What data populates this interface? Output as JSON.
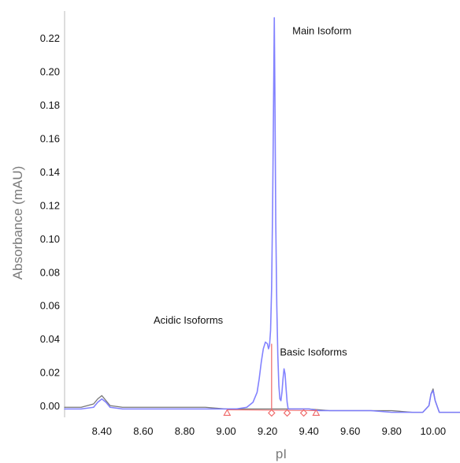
{
  "chart_data": {
    "type": "line",
    "title": "",
    "xlabel": "pI",
    "ylabel": "Absorbance (mAU)",
    "xlim": [
      8.22,
      10.13
    ],
    "ylim": [
      -0.007,
      0.236
    ],
    "grid": false,
    "legend": "none",
    "x_ticks": [
      8.4,
      8.6,
      8.8,
      9.0,
      9.2,
      9.4,
      9.6,
      9.8,
      10.0
    ],
    "x_tick_labels": [
      "8.40",
      "8.60",
      "8.80",
      "9.00",
      "9.20",
      "9.40",
      "9.60",
      "9.80",
      "10.00"
    ],
    "y_ticks": [
      0.0,
      0.02,
      0.04,
      0.06,
      0.08,
      0.1,
      0.12,
      0.14,
      0.16,
      0.18,
      0.2,
      0.22
    ],
    "y_tick_labels": [
      "0.00",
      "0.02",
      "0.04",
      "0.06",
      "0.08",
      "0.10",
      "0.12",
      "0.14",
      "0.16",
      "0.18",
      "0.20",
      "0.22"
    ],
    "annotations": [
      {
        "text": "Main Isoform",
        "x": 9.32,
        "y": 0.222
      },
      {
        "text": "Acidic Isoforms",
        "x": 8.65,
        "y": 0.049
      },
      {
        "text": "Basic Isoforms",
        "x": 9.26,
        "y": 0.03
      }
    ],
    "colors": {
      "sample": "#7b7bff",
      "blank": "#555555",
      "markers": "#ee6666"
    },
    "series": [
      {
        "color": "#7b7bff",
        "x": [
          8.22,
          8.3,
          8.36,
          8.38,
          8.4,
          8.42,
          8.44,
          8.5,
          8.6,
          8.7,
          8.8,
          8.9,
          9.0,
          9.05,
          9.1,
          9.13,
          9.15,
          9.16,
          9.17,
          9.18,
          9.19,
          9.2,
          9.205,
          9.21,
          9.215,
          9.22,
          9.225,
          9.23,
          9.233,
          9.236,
          9.24,
          9.245,
          9.25,
          9.255,
          9.26,
          9.265,
          9.27,
          9.275,
          9.28,
          9.285,
          9.29,
          9.295,
          9.3,
          9.31,
          9.32,
          9.35,
          9.4,
          9.45,
          9.5,
          9.6,
          9.7,
          9.8,
          9.9,
          9.95,
          9.98,
          9.99,
          10.0,
          10.01,
          10.03,
          10.13
        ],
        "y": [
          -0.002,
          -0.002,
          -0.001,
          0.002,
          0.004,
          0.002,
          -0.001,
          -0.002,
          -0.002,
          -0.002,
          -0.002,
          -0.002,
          -0.002,
          -0.002,
          -0.001,
          0.002,
          0.008,
          0.016,
          0.026,
          0.034,
          0.038,
          0.037,
          0.034,
          0.036,
          0.045,
          0.07,
          0.12,
          0.19,
          0.232,
          0.185,
          0.11,
          0.06,
          0.03,
          0.012,
          0.004,
          0.003,
          0.008,
          0.016,
          0.022,
          0.019,
          0.01,
          0.002,
          -0.002,
          -0.002,
          -0.002,
          -0.002,
          -0.002,
          -0.003,
          -0.003,
          -0.003,
          -0.003,
          -0.004,
          -0.004,
          -0.004,
          0.0,
          0.007,
          0.009,
          0.003,
          -0.004,
          -0.004
        ]
      },
      {
        "color": "#555555",
        "x": [
          8.22,
          8.3,
          8.36,
          8.38,
          8.4,
          8.42,
          8.44,
          8.5,
          8.6,
          8.7,
          8.8,
          8.9,
          9.0,
          9.1,
          9.2,
          9.3,
          9.4,
          9.5,
          9.6,
          9.7,
          9.8,
          9.9,
          9.95,
          9.98,
          9.99,
          10.0,
          10.01,
          10.03,
          10.13
        ],
        "y": [
          -0.001,
          -0.001,
          0.001,
          0.004,
          0.006,
          0.003,
          0.0,
          -0.001,
          -0.001,
          -0.001,
          -0.001,
          -0.001,
          -0.002,
          -0.002,
          -0.002,
          -0.002,
          -0.002,
          -0.003,
          -0.003,
          -0.003,
          -0.003,
          -0.004,
          -0.004,
          0.0,
          0.007,
          0.01,
          0.003,
          -0.004,
          -0.004
        ]
      }
    ],
    "markers": {
      "divider_x": 9.22,
      "triangles": [
        9.005,
        9.435
      ],
      "diamonds": [
        9.22,
        9.295,
        9.375
      ]
    }
  }
}
